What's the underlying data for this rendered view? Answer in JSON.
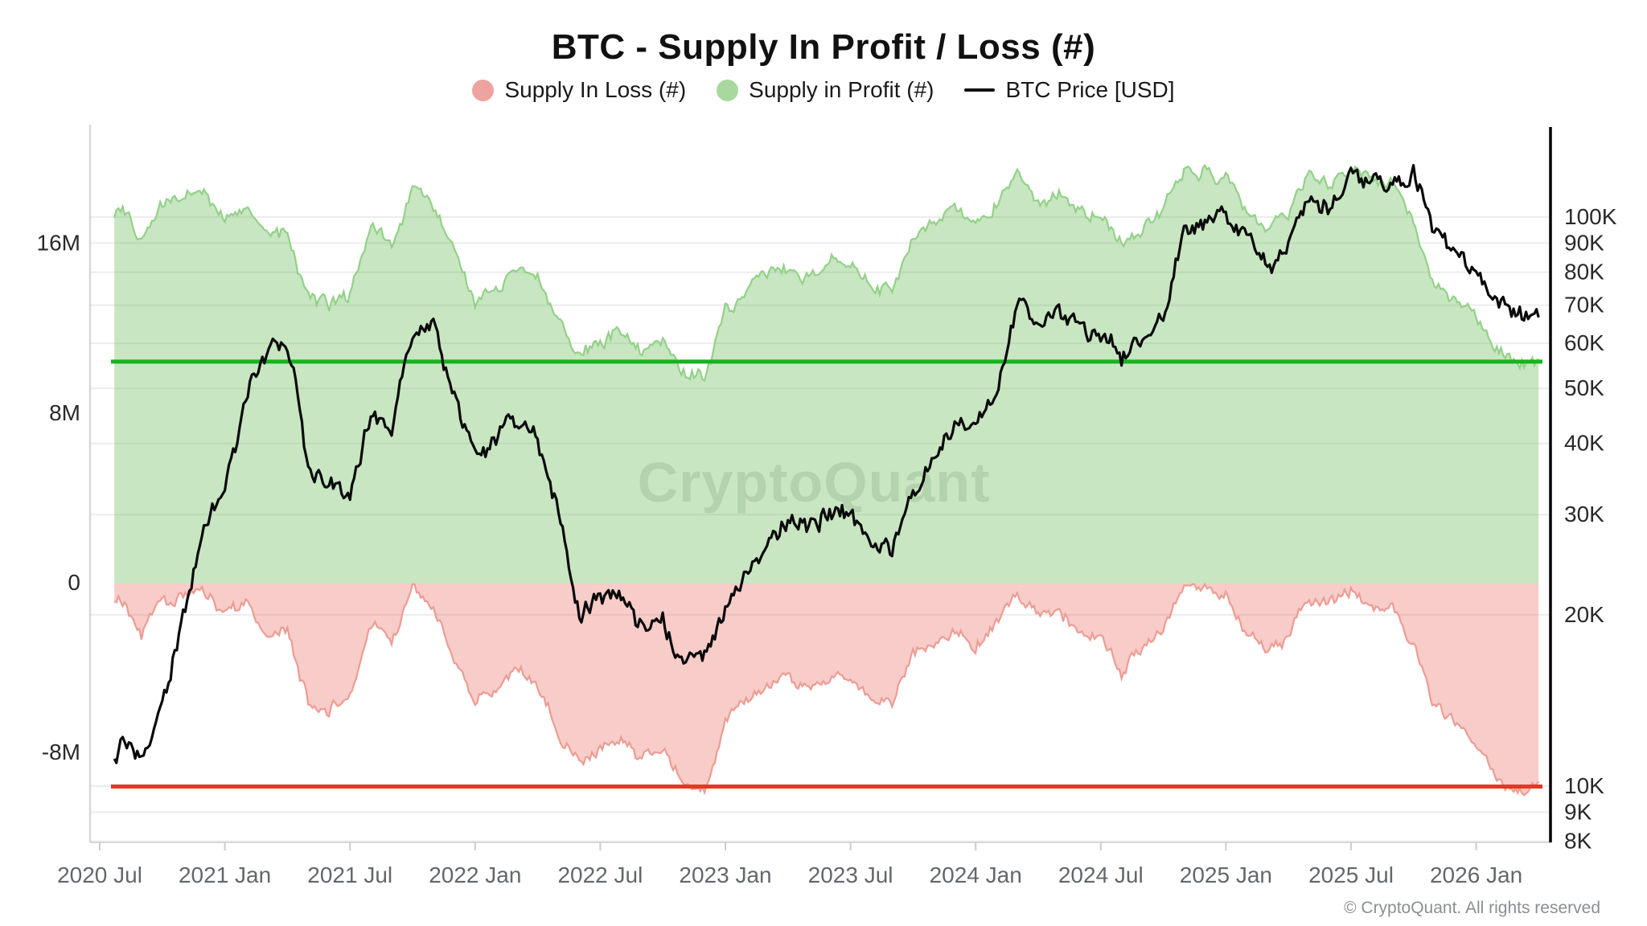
{
  "header": {
    "title": "BTC - Supply In Profit / Loss (#)",
    "legend": [
      {
        "label": "Supply In Loss (#)",
        "swatch": "#eda3a0",
        "marker": "dot"
      },
      {
        "label": "Supply in Profit (#)",
        "swatch": "#a8d89d",
        "marker": "dot"
      },
      {
        "label": "BTC Price [USD]",
        "swatch": "#111111",
        "marker": "line"
      }
    ]
  },
  "watermark": "CryptoQuant",
  "footer": "© CryptoQuant. All rights reserved",
  "colors": {
    "profit_fill": "rgba(110,190,95,0.38)",
    "profit_edge": "#93d188",
    "loss_fill": "rgba(231,86,72,0.30)",
    "loss_edge": "#ec9c94",
    "profit_ref_line": "#16b31f",
    "loss_ref_line": "#e23a21",
    "price_line": "#0a0a0a",
    "grid_line": "#ececec",
    "left_axis_line": "#d9d9d9",
    "right_axis_line": "#000000",
    "axis_text": "#2a2a2a",
    "x_axis_text": "#63676b"
  },
  "chart_data": {
    "type": "mixed",
    "title": "BTC - Supply In Profit / Loss (#)",
    "x_tick_labels": [
      "2020 Jul",
      "2021 Jan",
      "2021 Jul",
      "2022 Jan",
      "2022 Jul",
      "2023 Jan",
      "2023 Jul",
      "2024 Jan",
      "2024 Jul",
      "2025 Jan",
      "2025 Jul",
      "2026 Jan"
    ],
    "left_axis": {
      "scale": "linear",
      "unit": "M BTC",
      "tick_labels": [
        "16M",
        "8M",
        "0",
        "-8M"
      ],
      "tick_values_m": [
        16,
        8,
        0,
        -8
      ]
    },
    "right_axis": {
      "scale": "log",
      "unit": "K USD",
      "tick_labels": [
        "100K",
        "90K",
        "80K",
        "70K",
        "60K",
        "50K",
        "40K",
        "30K",
        "20K",
        "10K",
        "9K",
        "8K"
      ],
      "tick_values_k": [
        100,
        90,
        80,
        70,
        60,
        50,
        40,
        30,
        20,
        10,
        9,
        8
      ]
    },
    "months": [
      "2020-07",
      "2020-08",
      "2020-09",
      "2020-10",
      "2020-11",
      "2020-12",
      "2021-01",
      "2021-02",
      "2021-03",
      "2021-04",
      "2021-05",
      "2021-06",
      "2021-07",
      "2021-08",
      "2021-09",
      "2021-10",
      "2021-11",
      "2021-12",
      "2022-01",
      "2022-02",
      "2022-03",
      "2022-04",
      "2022-05",
      "2022-06",
      "2022-07",
      "2022-08",
      "2022-09",
      "2022-10",
      "2022-11",
      "2022-12",
      "2023-01",
      "2023-02",
      "2023-03",
      "2023-04",
      "2023-05",
      "2023-06",
      "2023-07",
      "2023-08",
      "2023-09",
      "2023-10",
      "2023-11",
      "2023-12",
      "2024-01",
      "2024-02",
      "2024-03",
      "2024-04",
      "2024-05",
      "2024-06",
      "2024-07",
      "2024-08",
      "2024-09",
      "2024-10",
      "2024-11",
      "2024-12",
      "2025-01",
      "2025-02",
      "2025-03",
      "2025-04",
      "2025-05",
      "2025-06",
      "2025-07",
      "2025-08",
      "2025-09",
      "2025-10",
      "2025-11",
      "2025-12",
      "2026-01",
      "2026-02",
      "2026-03"
    ],
    "series": [
      {
        "name": "Supply in Profit (#)",
        "type": "area",
        "axis": "left",
        "sign": 1,
        "values_m": [
          16.8,
          17.6,
          16.2,
          17.8,
          18.3,
          18.5,
          17.2,
          17.8,
          16.3,
          16.5,
          13.4,
          13.0,
          13.5,
          16.8,
          16.0,
          18.6,
          17.9,
          15.6,
          13.4,
          13.9,
          14.9,
          14.3,
          12.0,
          10.8,
          11.6,
          11.8,
          11.1,
          11.4,
          9.9,
          9.6,
          12.8,
          13.8,
          14.6,
          15.0,
          14.6,
          15.2,
          15.3,
          14.2,
          14.0,
          16.2,
          17.0,
          17.6,
          16.9,
          18.1,
          19.3,
          18.3,
          18.4,
          17.6,
          17.4,
          15.9,
          16.6,
          17.6,
          19.5,
          19.6,
          19.3,
          17.6,
          16.8,
          17.4,
          19.3,
          18.9,
          19.6,
          18.9,
          18.8,
          17.2,
          14.0,
          13.4,
          12.6,
          10.9,
          10.4
        ]
      },
      {
        "name": "Supply In Loss (#)",
        "type": "area",
        "axis": "left",
        "sign": -1,
        "values_m": [
          1.6,
          0.9,
          2.4,
          0.8,
          0.3,
          0.2,
          1.5,
          0.9,
          2.5,
          2.3,
          5.5,
          5.9,
          5.4,
          2.1,
          2.9,
          0.4,
          1.1,
          3.4,
          5.6,
          5.1,
          4.1,
          4.8,
          7.2,
          8.5,
          7.7,
          7.4,
          8.2,
          7.9,
          9.7,
          10.0,
          6.6,
          5.6,
          4.9,
          4.5,
          4.9,
          4.4,
          4.3,
          5.5,
          5.7,
          3.5,
          2.7,
          2.1,
          2.9,
          1.7,
          0.5,
          1.6,
          1.5,
          2.3,
          2.5,
          4.2,
          3.2,
          2.2,
          0.4,
          0.3,
          0.6,
          2.4,
          3.2,
          2.6,
          0.7,
          1.1,
          0.4,
          1.1,
          1.2,
          2.8,
          6.0,
          6.6,
          7.4,
          9.2,
          9.6
        ]
      },
      {
        "name": "BTC Price [USD]",
        "type": "line",
        "axis": "right",
        "values_k_usd": [
          9.2,
          11.7,
          10.8,
          13.8,
          19.7,
          29,
          33,
          48,
          58,
          62,
          37,
          34,
          33,
          47,
          43,
          61,
          66,
          47,
          38,
          40,
          45,
          40,
          30,
          20,
          22,
          21.5,
          19.5,
          19.5,
          16.5,
          16.8,
          21,
          23.5,
          27,
          29,
          27.5,
          30,
          29.5,
          26.5,
          26.5,
          33,
          37.5,
          43,
          42.5,
          50,
          70,
          65,
          67,
          63,
          62,
          56,
          61,
          67,
          92,
          98,
          102,
          92,
          84,
          88,
          106,
          105,
          115,
          114,
          113,
          123,
          94,
          89,
          80,
          70,
          67
        ]
      }
    ],
    "reference_lines": [
      {
        "name": "latest-supply-in-profit",
        "axis": "left",
        "value_m": 10.42
      },
      {
        "name": "latest-supply-in-loss",
        "axis": "left",
        "value_m": -9.6
      }
    ]
  }
}
